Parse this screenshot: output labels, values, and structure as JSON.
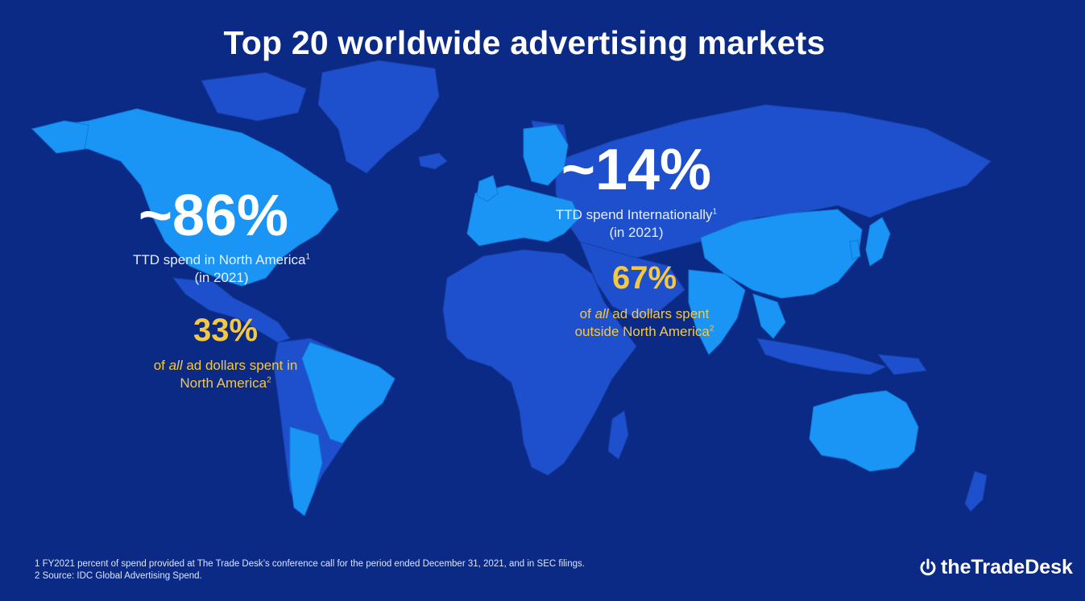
{
  "title": "Top 20 worldwide advertising markets",
  "north_america": {
    "share": "~86%",
    "caption_line1": "TTD spend in North America",
    "caption_line1_sup": "1",
    "caption_line2": "(in 2021)",
    "ad_share": "33%",
    "ad_caption_pre": "of ",
    "ad_caption_em": "all",
    "ad_caption_post": " ad dollars spent in",
    "ad_caption_line2": "North America",
    "ad_caption_sup": "2"
  },
  "international": {
    "share": "~14%",
    "caption_line1": "TTD spend Internationally",
    "caption_line1_sup": "1",
    "caption_line2": "(in 2021)",
    "ad_share": "67%",
    "ad_caption_em": "all",
    "ad_caption_pre": "of ",
    "ad_caption_post": " ad dollars spent",
    "ad_caption_line2": "outside North America",
    "ad_caption_sup": "2"
  },
  "footnotes": [
    "1 FY2021 percent of spend provided at The Trade Desk’s conference call for the period ended December 31, 2021, and in SEC filings.",
    "2 Source: IDC Global Advertising Spend."
  ],
  "logo": {
    "text": "theTradeDesk",
    "icon": "power-icon"
  },
  "colors": {
    "background": "#0a2a85",
    "land_default": "#1e4fcc",
    "land_highlight": "#1a95f5",
    "stat_white": "#ffffff",
    "stat_yellow": "#f5c842"
  }
}
